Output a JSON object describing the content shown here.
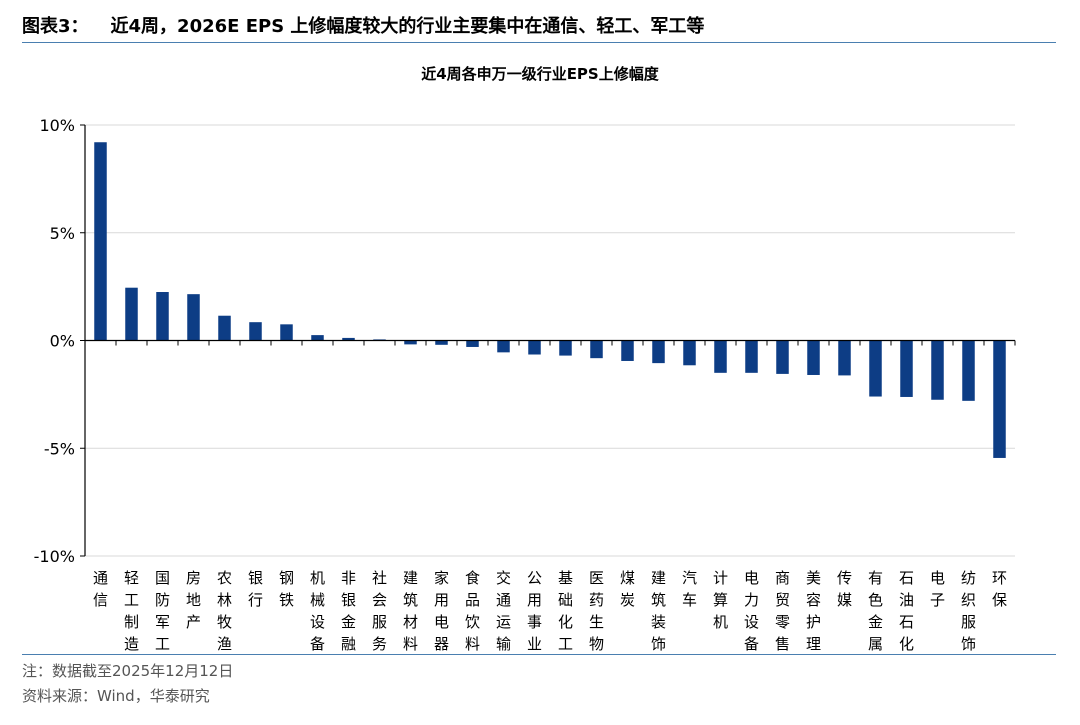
{
  "figure": {
    "label": "图表3：",
    "heading": "近4周，2026E EPS 上修幅度较大的行业主要集中在通信、轻工、军工等"
  },
  "footer": {
    "note": "注：数据截至2025年12月12日",
    "source": "资料来源：Wind，华泰研究"
  },
  "colors": {
    "bar": "#0d3d85",
    "grid": "#d9d9d9",
    "rule": "#4a7fb0"
  },
  "chart_data": {
    "type": "bar",
    "title": "近4周各申万一级行业EPS上修幅度",
    "xlabel": "",
    "ylabel": "",
    "ylim": [
      -10,
      10
    ],
    "yticks": [
      10,
      5,
      0,
      -5,
      -10
    ],
    "ytick_labels": [
      "10%",
      "5%",
      "0%",
      "-5%",
      "-10%"
    ],
    "grid": true,
    "categories": [
      "通信",
      "轻工制造",
      "国防军工",
      "房地产",
      "农林牧渔",
      "银行",
      "钢铁",
      "机械设备",
      "非银金融",
      "社会服务",
      "建筑材料",
      "家用电器",
      "食品饮料",
      "交通运输",
      "公用事业",
      "基础化工",
      "医药生物",
      "煤炭",
      "建筑装饰",
      "汽车",
      "计算机",
      "电力设备",
      "商贸零售",
      "美容护理",
      "传媒",
      "有色金属",
      "石油石化",
      "电子",
      "纺织服饰",
      "环保"
    ],
    "values": [
      9.2,
      2.45,
      2.25,
      2.15,
      1.15,
      0.85,
      0.75,
      0.25,
      0.12,
      0.05,
      -0.18,
      -0.2,
      -0.3,
      -0.55,
      -0.65,
      -0.7,
      -0.82,
      -0.95,
      -1.05,
      -1.15,
      -1.5,
      -1.5,
      -1.55,
      -1.6,
      -1.62,
      -2.6,
      -2.62,
      -2.75,
      -2.8,
      -5.45
    ]
  }
}
